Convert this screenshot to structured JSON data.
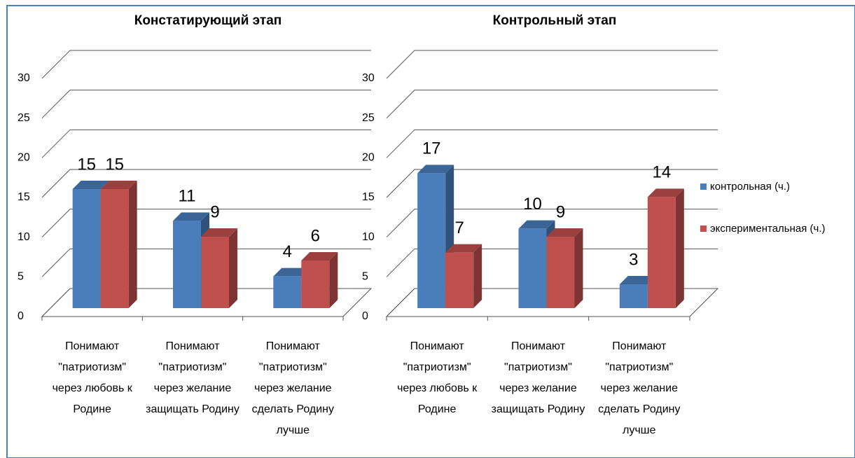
{
  "chart_data": [
    {
      "type": "bar3d",
      "title": "Констатирующий этап",
      "categories": [
        "Понимают \"патриотизм\" через любовь к Родине",
        "Понимают \"патриотизм\" через желание защищать Родину",
        "Понимают \"патриотизм\" через желание сделать Родину лучше"
      ],
      "series": [
        {
          "color": "#4a7ebb",
          "values": [
            15,
            11,
            4
          ]
        },
        {
          "color": "#c0504d",
          "values": [
            15,
            9,
            6
          ]
        }
      ],
      "ylim": [
        0,
        30
      ],
      "yticks": [
        0,
        5,
        10,
        15,
        20,
        25,
        30
      ],
      "grid": true
    },
    {
      "type": "bar3d",
      "title": "Контрольный этап",
      "categories": [
        "Понимают \"патриотизм\" через любовь к Родине",
        "Понимают \"патриотизм\" через желание защищать Родину",
        "Понимают \"патриотизм\" через желание сделать Родину лучше"
      ],
      "series": [
        {
          "name": "контрольная (ч.)",
          "color": "#4a7ebb",
          "values": [
            17,
            10,
            3
          ]
        },
        {
          "name": "экспериментальная (ч.)",
          "color": "#c0504d",
          "values": [
            7,
            9,
            14
          ]
        }
      ],
      "ylim": [
        0,
        30
      ],
      "yticks": [
        0,
        5,
        10,
        15,
        20,
        25,
        30
      ],
      "grid": true,
      "legend": "right"
    }
  ]
}
